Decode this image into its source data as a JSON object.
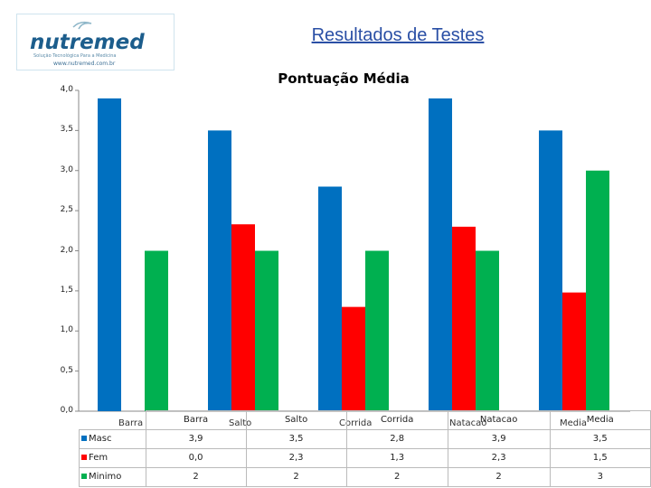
{
  "slide": {
    "title": "Resultados de Testes"
  },
  "logo": {
    "brand": "nutremed",
    "tagline": "Solução Tecnológica Para a Medicina",
    "url": "www.nutremed.com.br"
  },
  "colors": {
    "masc": "#0070c0",
    "fem": "#ff0000",
    "minimo": "#00b050",
    "title": "#2a4fa5"
  },
  "chart_data": {
    "type": "bar",
    "title": "Pontuação Média",
    "categories": [
      "Barra",
      "Salto",
      "Corrida",
      "Natacao",
      "Media"
    ],
    "series": [
      {
        "name": "Masc",
        "values": [
          3.9,
          3.5,
          2.8,
          3.9,
          3.5
        ],
        "labels": [
          "3,9",
          "3,5",
          "2,8",
          "3,9",
          "3,5"
        ]
      },
      {
        "name": "Fem",
        "values": [
          0.0,
          2.33,
          1.3,
          2.3,
          1.48
        ],
        "labels": [
          "0,0",
          "2,3",
          "1,3",
          "2,3",
          "1,5"
        ]
      },
      {
        "name": "Minimo",
        "values": [
          2,
          2,
          2,
          2,
          3
        ],
        "labels": [
          "2",
          "2",
          "2",
          "2",
          "3"
        ]
      }
    ],
    "ylim": [
      0,
      4
    ],
    "yticks": [
      "0,0",
      "0,5",
      "1,0",
      "1,5",
      "2,0",
      "2,5",
      "3,0",
      "3,5",
      "4,0"
    ],
    "grid": false,
    "legend": "data table"
  }
}
